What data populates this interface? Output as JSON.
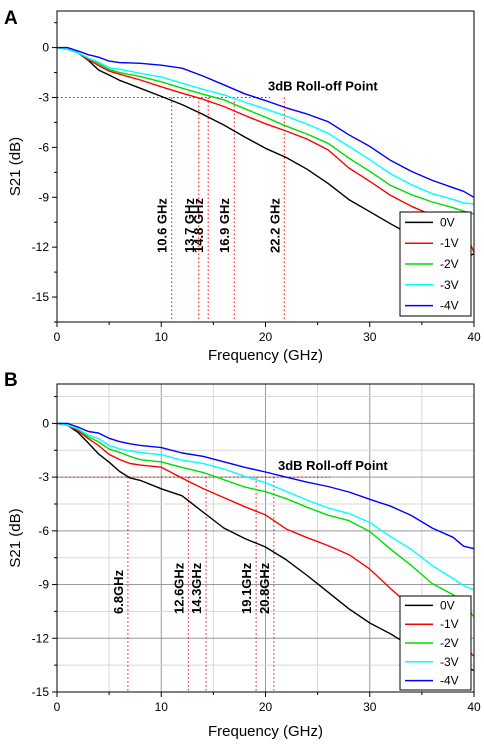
{
  "chart_data": [
    {
      "panel": "A",
      "type": "line",
      "xlabel": "Frequency (GHz)",
      "ylabel": "S21 (dB)",
      "xlim": [
        0,
        40
      ],
      "ylim": [
        -16.5,
        2.2
      ],
      "xticks": [
        "0",
        "10",
        "20",
        "30",
        "40"
      ],
      "yticks": [
        "0",
        "-3",
        "-6",
        "-9",
        "-12",
        "-15"
      ],
      "grid": false,
      "legend": "bottom-right",
      "annotation": "3dB Roll-off Point",
      "rolloff_labels": [
        "10.6 GHz",
        "13.7 GHz",
        "14.8 GHz",
        "16.9 GHz",
        "22.2 GHz"
      ],
      "rolloff_x": [
        11.0,
        13.6,
        14.5,
        17.0,
        21.8
      ],
      "series": [
        {
          "name": "0V",
          "color": "#000000",
          "x": [
            0,
            1,
            2,
            3,
            4,
            5,
            6,
            8,
            10,
            12,
            14,
            16,
            18,
            20,
            22,
            24,
            26,
            28,
            30,
            32,
            34,
            36,
            38,
            39,
            40
          ],
          "values": [
            0,
            -0.1,
            -0.3,
            -0.8,
            -1.3,
            -1.7,
            -2.0,
            -2.5,
            -2.9,
            -3.4,
            -4.0,
            -4.7,
            -5.4,
            -6.1,
            -6.6,
            -7.3,
            -8.2,
            -9.1,
            -9.9,
            -10.6,
            -11.3,
            -11.9,
            -12.4,
            -12.6,
            -12.4
          ]
        },
        {
          "name": "-1V",
          "color": "#ff0000",
          "x": [
            0,
            1,
            2,
            3,
            4,
            5,
            6,
            8,
            10,
            12,
            14,
            16,
            18,
            20,
            22,
            24,
            26,
            28,
            30,
            32,
            34,
            36,
            38,
            39,
            40
          ],
          "values": [
            0,
            -0.1,
            -0.3,
            -0.7,
            -1.1,
            -1.4,
            -1.6,
            -2.0,
            -2.4,
            -2.7,
            -3.1,
            -3.6,
            -4.1,
            -4.6,
            -5.0,
            -5.5,
            -6.2,
            -7.2,
            -8.1,
            -8.9,
            -9.6,
            -10.1,
            -10.5,
            -10.9,
            -12.3
          ]
        },
        {
          "name": "-2V",
          "color": "#00dd00",
          "x": [
            0,
            1,
            2,
            3,
            4,
            5,
            6,
            8,
            10,
            12,
            14,
            16,
            18,
            20,
            22,
            24,
            26,
            28,
            30,
            32,
            34,
            36,
            38,
            39,
            40
          ],
          "values": [
            0,
            -0.1,
            -0.3,
            -0.6,
            -1.0,
            -1.3,
            -1.5,
            -1.8,
            -2.1,
            -2.4,
            -2.8,
            -3.2,
            -3.7,
            -4.2,
            -4.7,
            -5.2,
            -5.8,
            -6.6,
            -7.5,
            -8.3,
            -8.9,
            -9.3,
            -9.6,
            -9.8,
            -10.0
          ]
        },
        {
          "name": "-3V",
          "color": "#00ffff",
          "x": [
            0,
            1,
            2,
            3,
            4,
            5,
            6,
            8,
            10,
            12,
            14,
            16,
            18,
            20,
            22,
            24,
            26,
            28,
            30,
            32,
            34,
            36,
            38,
            39,
            40
          ],
          "values": [
            0,
            -0.1,
            -0.3,
            -0.6,
            -0.9,
            -1.2,
            -1.3,
            -1.6,
            -1.8,
            -2.1,
            -2.5,
            -2.9,
            -3.3,
            -3.7,
            -4.1,
            -4.6,
            -5.2,
            -5.9,
            -6.8,
            -7.6,
            -8.3,
            -8.8,
            -9.1,
            -9.3,
            -9.4
          ]
        },
        {
          "name": "-4V",
          "color": "#0000ff",
          "x": [
            0,
            1,
            2,
            3,
            4,
            5,
            6,
            8,
            10,
            12,
            14,
            16,
            18,
            20,
            22,
            24,
            26,
            28,
            30,
            32,
            34,
            36,
            38,
            39,
            40
          ],
          "values": [
            0,
            0,
            -0.2,
            -0.4,
            -0.6,
            -0.8,
            -0.9,
            -1.0,
            -1.1,
            -1.2,
            -1.7,
            -2.3,
            -2.8,
            -3.2,
            -3.6,
            -4.0,
            -4.5,
            -5.2,
            -6.0,
            -6.8,
            -7.5,
            -8.0,
            -8.4,
            -8.6,
            -9.0
          ]
        }
      ]
    },
    {
      "panel": "B",
      "type": "line",
      "xlabel": "Frequency (GHz)",
      "ylabel": "S21 (dB)",
      "xlim": [
        0,
        40
      ],
      "ylim": [
        -15,
        2.2
      ],
      "xticks": [
        "0",
        "10",
        "20",
        "30",
        "40"
      ],
      "yticks": [
        "0",
        "-3",
        "-6",
        "-9",
        "-12",
        "-15"
      ],
      "grid": true,
      "legend": "bottom-right",
      "annotation": "3dB Roll-off Point",
      "rolloff_labels": [
        "6.8GHz",
        "12.6GHz",
        "14.3GHz",
        "19.1GHz",
        "20.8GHz"
      ],
      "rolloff_x": [
        6.8,
        12.6,
        14.3,
        19.1,
        20.8
      ],
      "series": [
        {
          "name": "0V",
          "color": "#000000",
          "x": [
            0,
            1,
            2,
            3,
            4,
            5,
            6,
            7,
            8,
            10,
            12,
            14,
            16,
            18,
            20,
            22,
            24,
            26,
            28,
            30,
            32,
            34,
            36,
            38,
            39,
            40
          ],
          "values": [
            0,
            -0.1,
            -0.5,
            -1.1,
            -1.7,
            -2.2,
            -2.7,
            -3.0,
            -3.2,
            -3.6,
            -4.1,
            -4.9,
            -5.8,
            -6.4,
            -6.9,
            -7.6,
            -8.5,
            -9.4,
            -10.3,
            -11.1,
            -11.8,
            -12.5,
            -13.0,
            -13.4,
            -13.6,
            -13.8
          ]
        },
        {
          "name": "-1V",
          "color": "#ff0000",
          "x": [
            0,
            1,
            2,
            3,
            4,
            5,
            6,
            7,
            8,
            10,
            12,
            14,
            16,
            18,
            20,
            22,
            24,
            26,
            28,
            30,
            32,
            34,
            36,
            38,
            39,
            40
          ],
          "values": [
            0,
            -0.1,
            -0.4,
            -0.8,
            -1.3,
            -1.7,
            -2.0,
            -2.2,
            -2.3,
            -2.5,
            -3.0,
            -3.6,
            -4.1,
            -4.6,
            -5.1,
            -5.9,
            -6.4,
            -6.8,
            -7.3,
            -8.1,
            -9.2,
            -10.3,
            -11.2,
            -12.0,
            -12.4,
            -13.0
          ]
        },
        {
          "name": "-2V",
          "color": "#00dd00",
          "x": [
            0,
            1,
            2,
            3,
            4,
            5,
            6,
            7,
            8,
            10,
            12,
            14,
            16,
            18,
            20,
            22,
            24,
            26,
            28,
            30,
            32,
            34,
            36,
            38,
            39,
            40
          ],
          "values": [
            0,
            -0.1,
            -0.3,
            -0.7,
            -1.1,
            -1.4,
            -1.6,
            -1.8,
            -2.0,
            -2.2,
            -2.4,
            -2.7,
            -3.1,
            -3.5,
            -3.8,
            -4.2,
            -4.7,
            -5.1,
            -5.4,
            -6.0,
            -7.0,
            -8.0,
            -8.9,
            -9.6,
            -10.0,
            -10.8
          ]
        },
        {
          "name": "-3V",
          "color": "#00ffff",
          "x": [
            0,
            1,
            2,
            3,
            4,
            5,
            6,
            7,
            8,
            10,
            12,
            14,
            16,
            18,
            20,
            22,
            24,
            26,
            28,
            30,
            32,
            34,
            36,
            38,
            39,
            40
          ],
          "values": [
            0,
            -0.1,
            -0.3,
            -0.6,
            -0.9,
            -1.2,
            -1.4,
            -1.5,
            -1.6,
            -1.8,
            -2.0,
            -2.2,
            -2.5,
            -2.9,
            -3.3,
            -3.8,
            -4.3,
            -4.7,
            -5.0,
            -5.5,
            -6.3,
            -7.1,
            -7.9,
            -8.7,
            -9.0,
            -9.3
          ]
        },
        {
          "name": "-4V",
          "color": "#0000ff",
          "x": [
            0,
            1,
            2,
            3,
            4,
            5,
            6,
            7,
            8,
            10,
            12,
            14,
            16,
            18,
            20,
            22,
            24,
            26,
            28,
            30,
            32,
            34,
            36,
            38,
            39,
            40
          ],
          "values": [
            0,
            0,
            -0.2,
            -0.4,
            -0.6,
            -0.8,
            -1.0,
            -1.1,
            -1.2,
            -1.4,
            -1.6,
            -1.8,
            -2.1,
            -2.4,
            -2.7,
            -3.0,
            -3.3,
            -3.5,
            -3.8,
            -4.2,
            -4.6,
            -5.2,
            -5.8,
            -6.4,
            -6.8,
            -7.0
          ]
        }
      ]
    }
  ]
}
